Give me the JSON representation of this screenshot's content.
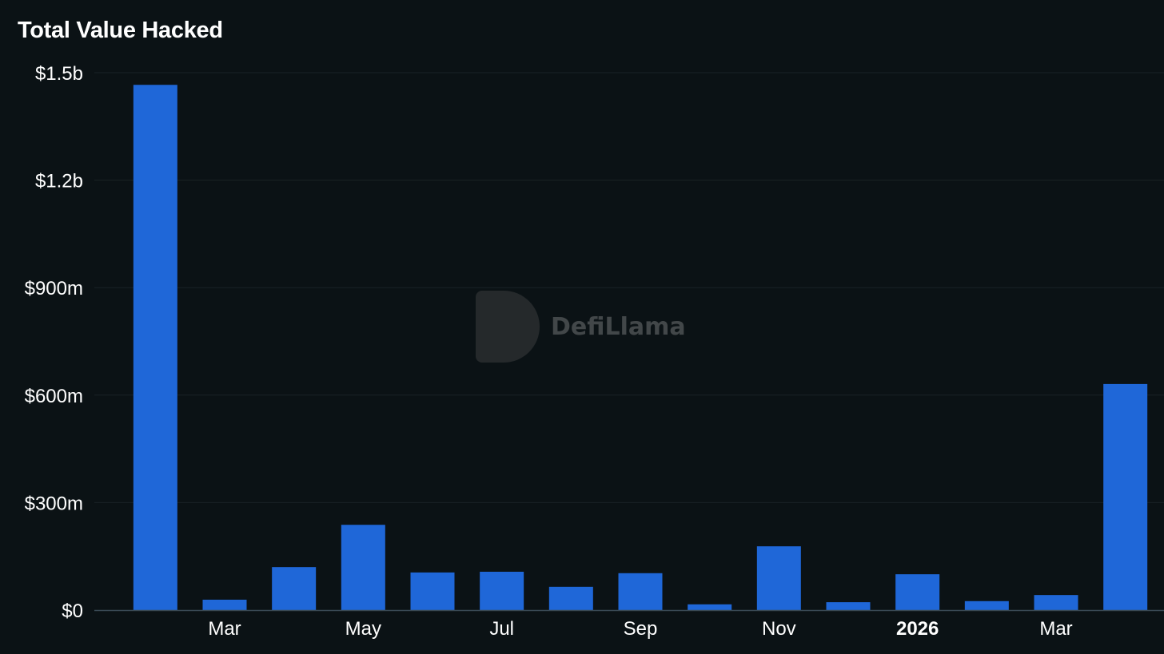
{
  "title": "Total Value Hacked",
  "watermark": "DefiLlama",
  "colors": {
    "background": "#0b1215",
    "bar": "#1f67d8",
    "grid": "#1a2226",
    "axis": "#3a4a55"
  },
  "chart_data": {
    "type": "bar",
    "title": "Total Value Hacked",
    "categories": [
      "2025-02",
      "2025-03",
      "2025-04",
      "2025-05",
      "2025-06",
      "2025-07",
      "2025-08",
      "2025-09",
      "2025-10",
      "2025-11",
      "2025-12",
      "2026-01",
      "2026-02",
      "2026-03",
      "2026-04"
    ],
    "x_tick_labels": [
      {
        "category": "2025-03",
        "label": "Mar",
        "bold": false
      },
      {
        "category": "2025-05",
        "label": "May",
        "bold": false
      },
      {
        "category": "2025-07",
        "label": "Jul",
        "bold": false
      },
      {
        "category": "2025-09",
        "label": "Sep",
        "bold": false
      },
      {
        "category": "2025-11",
        "label": "Nov",
        "bold": false
      },
      {
        "category": "2026-01",
        "label": "2026",
        "bold": true
      },
      {
        "category": "2026-03",
        "label": "Mar",
        "bold": false
      }
    ],
    "values": [
      1466000000,
      29000000,
      120000000,
      238000000,
      105000000,
      107000000,
      65000000,
      103000000,
      16000000,
      178000000,
      22000000,
      100000000,
      25000000,
      42000000,
      631000000
    ],
    "y_ticks": [
      {
        "value": 0,
        "label": "$0"
      },
      {
        "value": 300000000,
        "label": "$300m"
      },
      {
        "value": 600000000,
        "label": "$600m"
      },
      {
        "value": 900000000,
        "label": "$900m"
      },
      {
        "value": 1200000000,
        "label": "$1.2b"
      },
      {
        "value": 1500000000,
        "label": "$1.5b"
      }
    ],
    "ylim": [
      0,
      1500000000
    ],
    "grid": true,
    "xlabel": "",
    "ylabel": ""
  }
}
